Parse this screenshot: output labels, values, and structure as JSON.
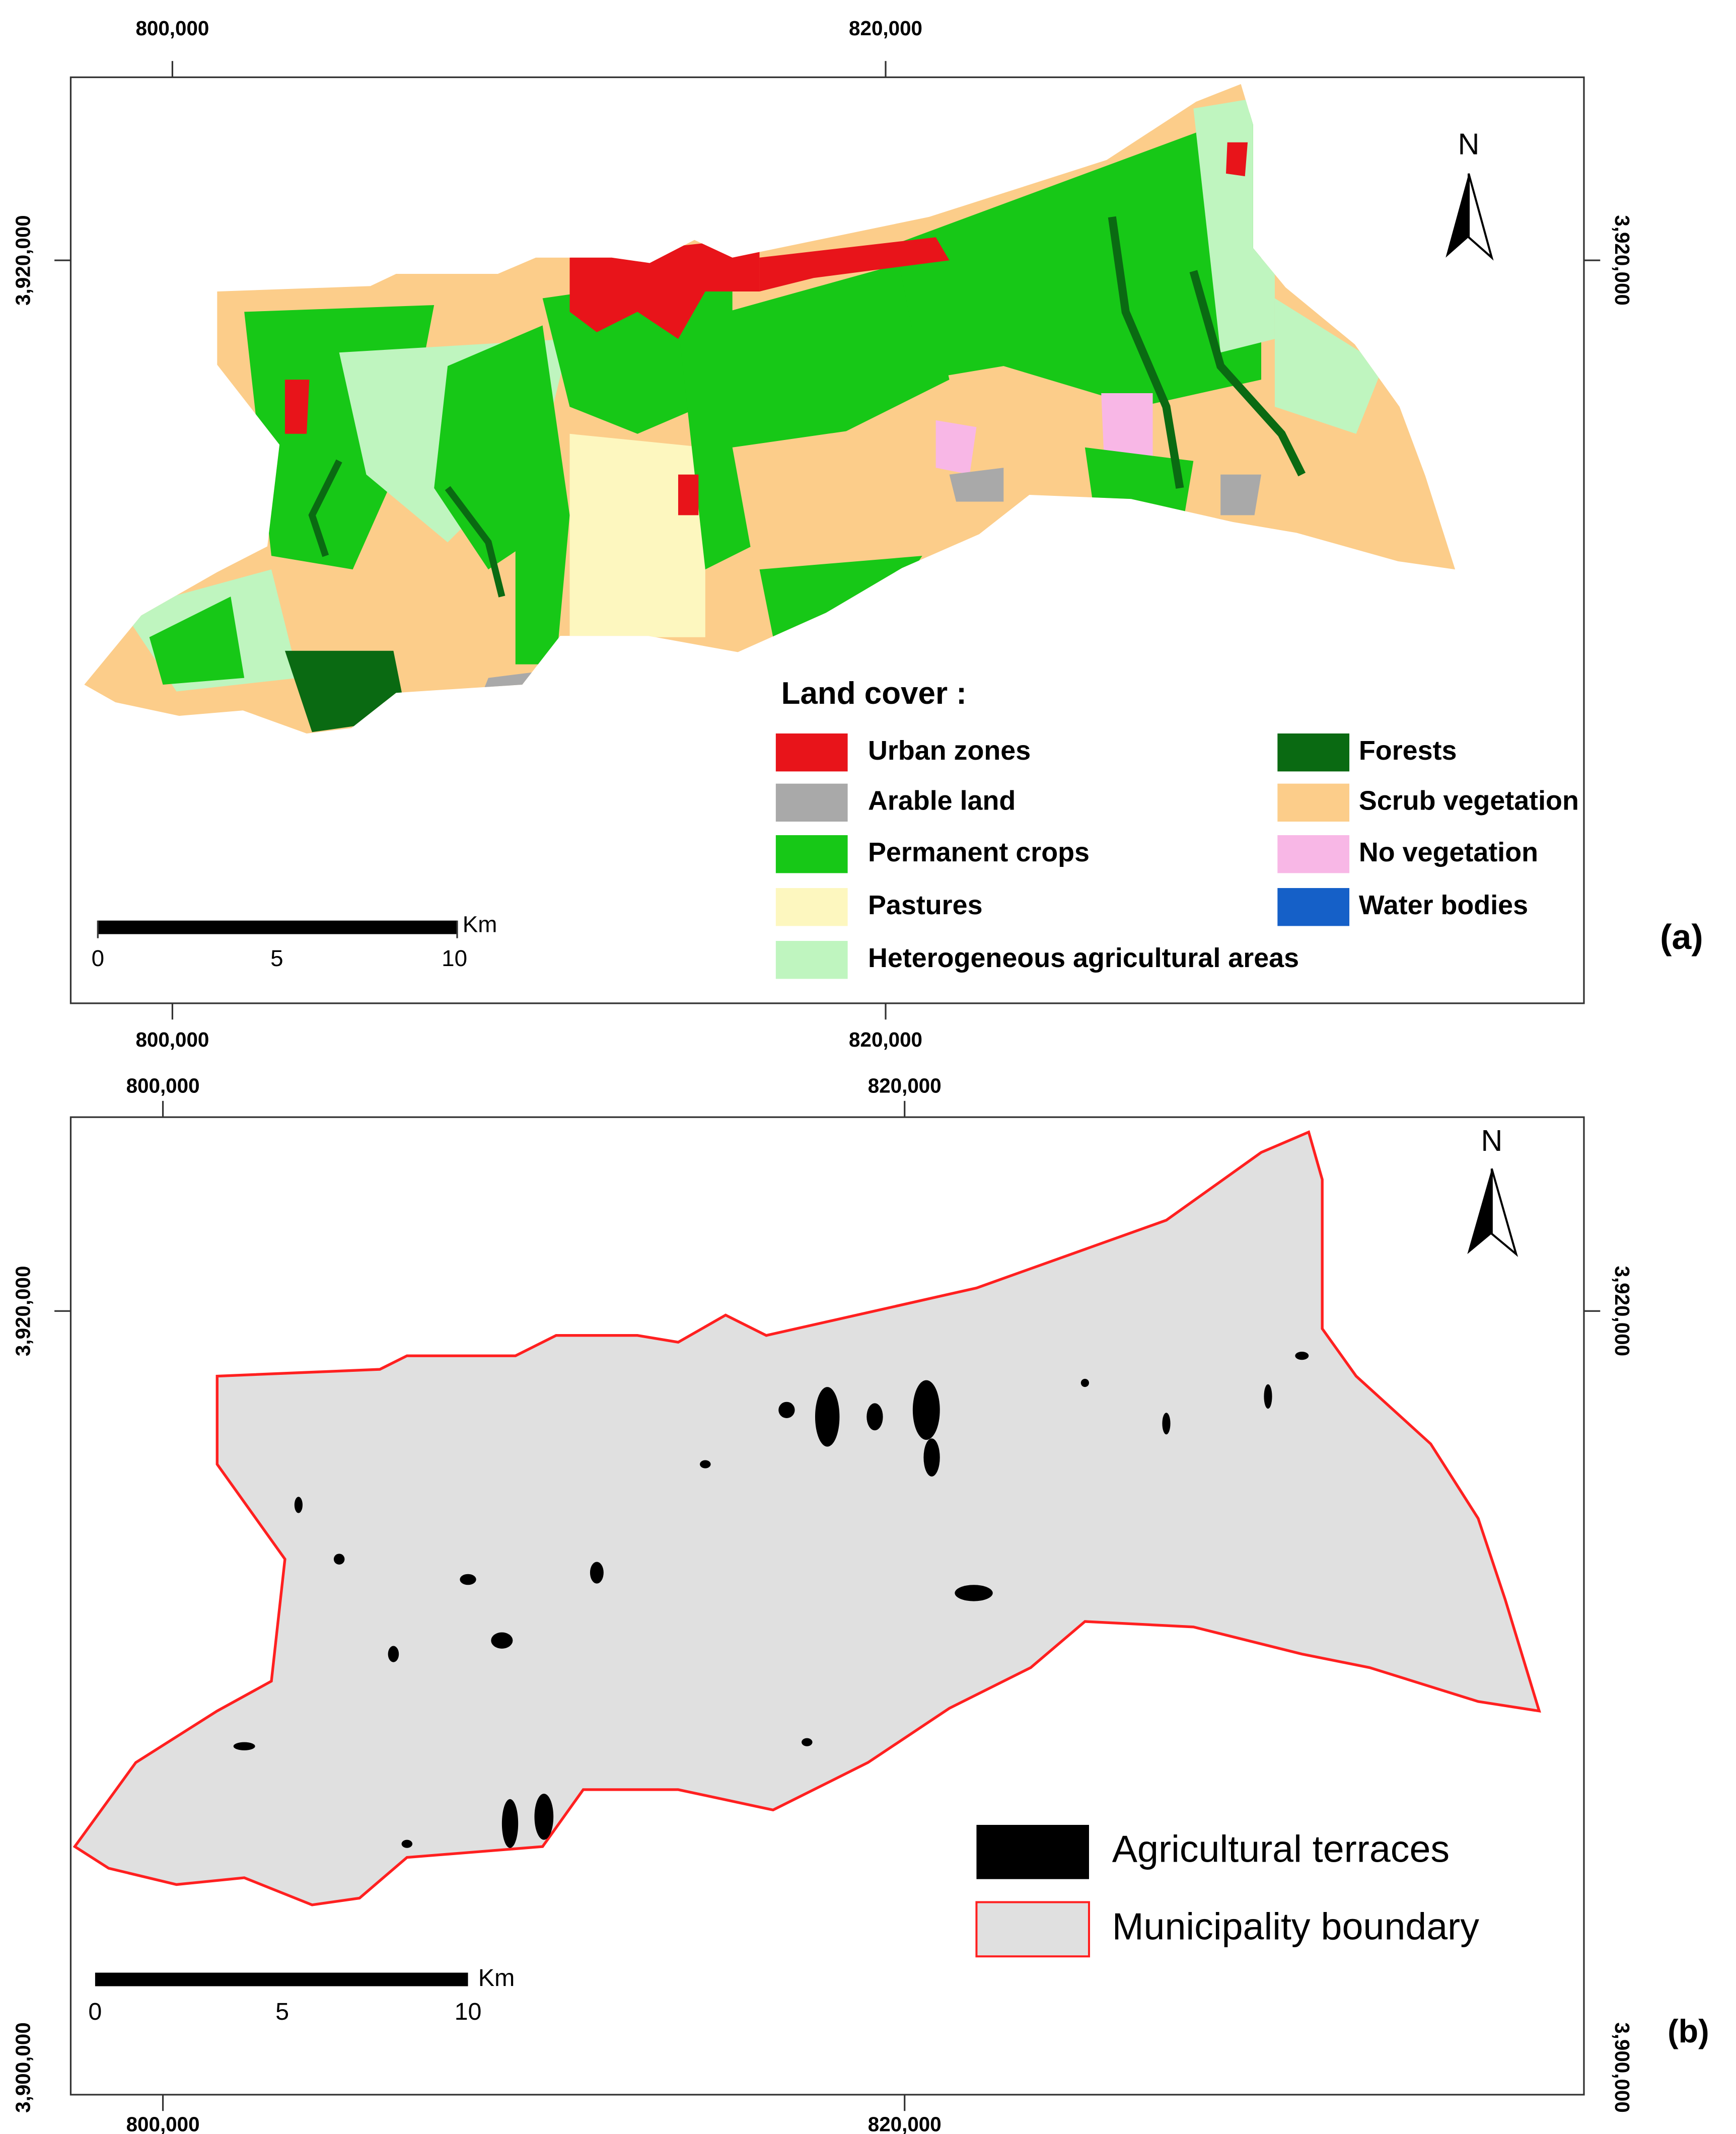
{
  "panels": [
    {
      "label": "(a)",
      "x_ticks_top": [
        "800,000",
        "820,000"
      ],
      "x_ticks_bottom": [
        "800,000",
        "820,000"
      ],
      "y_ticks_left": [
        "3,920,000"
      ],
      "y_ticks_right": [
        "3,920,000"
      ],
      "north": "N",
      "scale_bar": {
        "unit": "Km",
        "labels": [
          "0",
          "5",
          "10"
        ]
      },
      "legend": {
        "title": "Land cover :",
        "items": [
          {
            "label": "Urban zones",
            "color": "#e8141a"
          },
          {
            "label": "Arable land",
            "color": "#a9a9a9"
          },
          {
            "label": "Permanent crops",
            "color": "#17c817"
          },
          {
            "label": "Pastures",
            "color": "#fdf7bf"
          },
          {
            "label": "Heterogeneous agricultural areas",
            "color": "#bff5bf"
          },
          {
            "label": "Forests",
            "color": "#0a6a12"
          },
          {
            "label": "Scrub vegetation",
            "color": "#fccd8a"
          },
          {
            "label": "No vegetation",
            "color": "#f8b7e6"
          },
          {
            "label": "Water bodies",
            "color": "#1560c8"
          }
        ]
      }
    },
    {
      "label": "(b)",
      "x_ticks_top": [
        "800,000",
        "820,000"
      ],
      "x_ticks_bottom": [
        "800,000",
        "820,000"
      ],
      "y_ticks_left": [
        "3,920,000",
        "3,900,000"
      ],
      "y_ticks_right": [
        "3,920,000",
        "3,900,000"
      ],
      "north": "N",
      "scale_bar": {
        "unit": "Km",
        "labels": [
          "0",
          "5",
          "10"
        ]
      },
      "legend": {
        "items": [
          {
            "label": "Agricultural terraces",
            "color": "#000000"
          },
          {
            "label": "Municipality boundary",
            "color": "#e0e0e0",
            "stroke": "#ff2020"
          }
        ]
      }
    }
  ]
}
